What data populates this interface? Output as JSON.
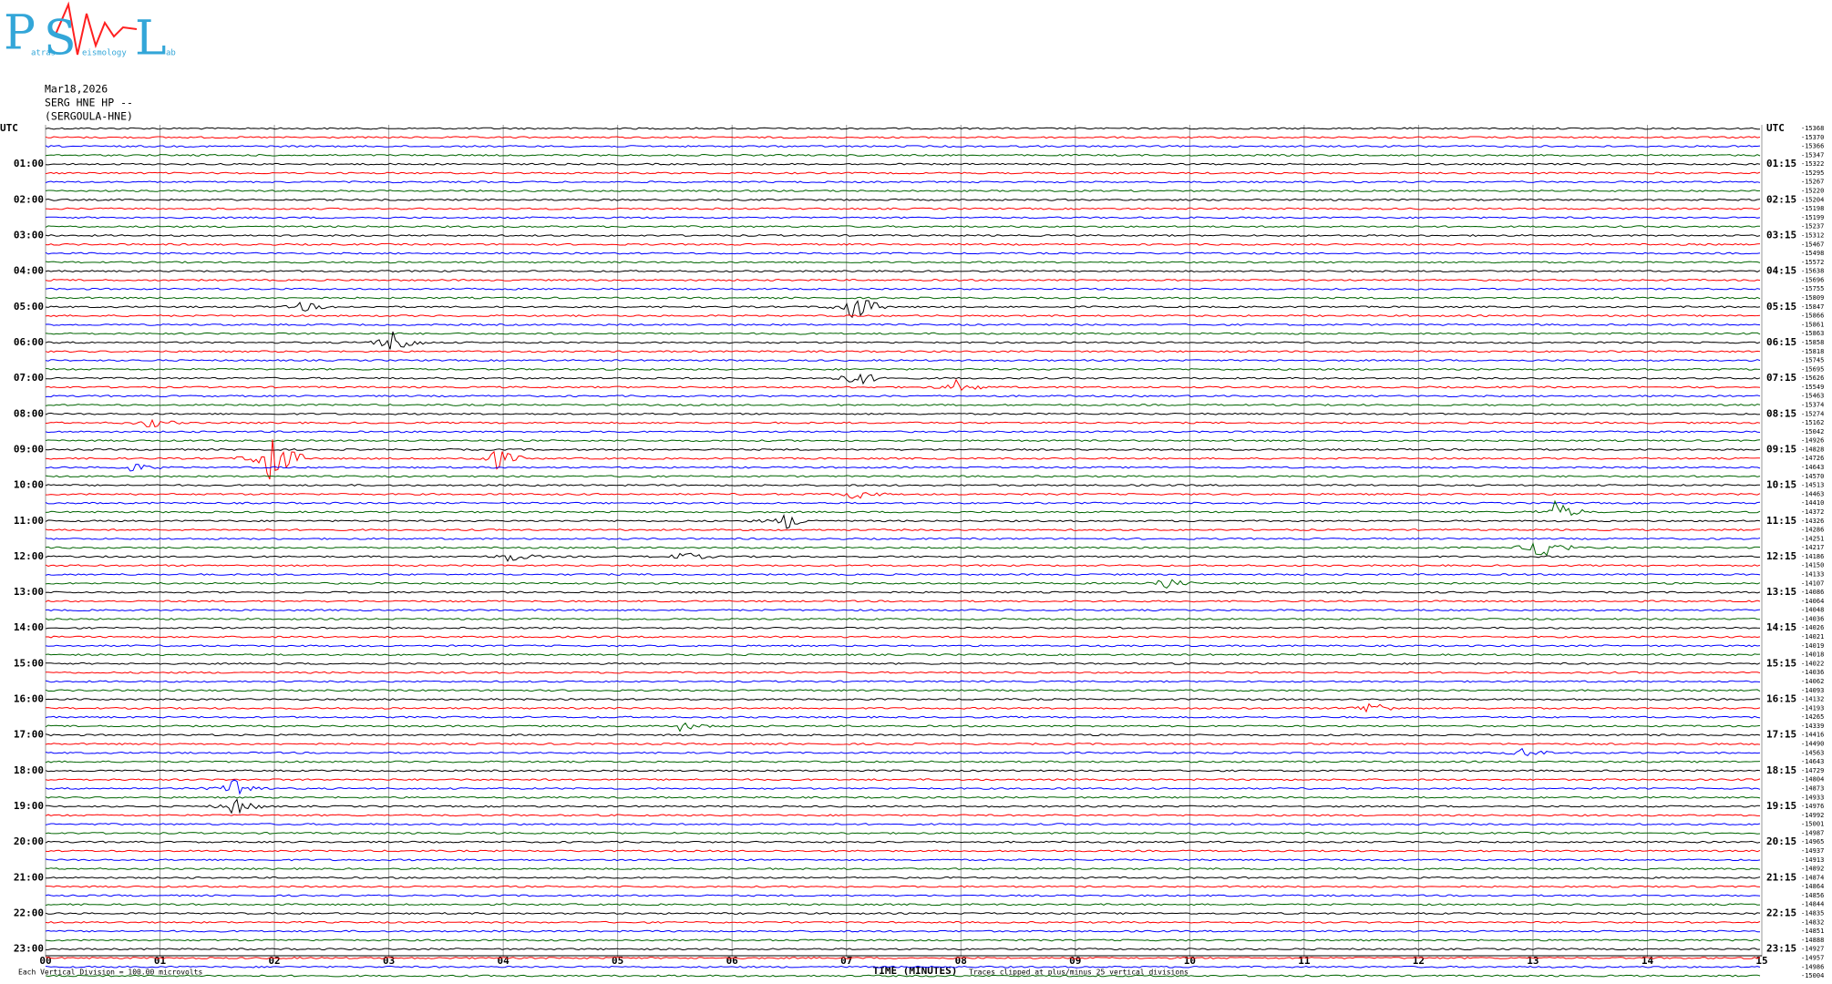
{
  "logo": {
    "letters": [
      "P",
      "S",
      "L"
    ],
    "small": [
      "atras",
      "eismology",
      "ab"
    ]
  },
  "header": {
    "date": "Mar18,2026",
    "channel": "SERG HNE HP --",
    "station": "(SERGOULA-HNE)"
  },
  "left_labels": [
    "UTC",
    "01:00",
    "02:00",
    "03:00",
    "04:00",
    "05:00",
    "06:00",
    "07:00",
    "08:00",
    "09:00",
    "10:00",
    "11:00",
    "12:00",
    "13:00",
    "14:00",
    "15:00",
    "16:00",
    "17:00",
    "18:00",
    "19:00",
    "20:00",
    "21:00",
    "22:00",
    "23:00"
  ],
  "right_labels": [
    "UTC",
    "01:15",
    "02:15",
    "03:15",
    "04:15",
    "05:15",
    "06:15",
    "07:15",
    "08:15",
    "09:15",
    "10:15",
    "11:15",
    "12:15",
    "13:15",
    "14:15",
    "15:15",
    "16:15",
    "17:15",
    "18:15",
    "19:15",
    "20:15",
    "21:15",
    "22:15",
    "23:15"
  ],
  "trace_offsets": [
    -15368,
    -15370,
    -15366,
    -15347,
    -15322,
    -15295,
    -15267,
    -15220,
    -15204,
    -15198,
    -15199,
    -15237,
    -15312,
    -15467,
    -15498,
    -15572,
    -15638,
    -15696,
    -15755,
    -15809,
    -15847,
    -15866,
    -15861,
    -15863,
    -15858,
    -15818,
    -15745,
    -15695,
    -15626,
    -15549,
    -15463,
    -15374,
    -15274,
    -15162,
    -15042,
    -14926,
    -14828,
    -14726,
    -14643,
    -14570,
    -14513,
    -14463,
    -14410,
    -14372,
    -14326,
    -14286,
    -14251,
    -14217,
    -14186,
    -14150,
    -14133,
    -14107,
    -14086,
    -14064,
    -14048,
    -14036,
    -14026,
    -14021,
    -14019,
    -14018,
    -14022,
    -14036,
    -14062,
    -14093,
    -14132,
    -14193,
    -14265,
    -14339,
    -14416,
    -14490,
    -14563,
    -14643,
    -14729,
    -14804,
    -14873,
    -14933,
    -14976,
    -14992,
    -15001,
    -14987,
    -14965,
    -14937,
    -14913,
    -14892,
    -14874,
    -14864,
    -14856,
    -14844,
    -14835,
    -14832,
    -14851,
    -14888,
    -14927,
    -14957,
    -14986,
    -15004
  ],
  "x_axis": {
    "title": "TIME (MINUTES)",
    "ticks": [
      {
        "value": 0,
        "label": "00"
      },
      {
        "value": 1,
        "label": "01"
      },
      {
        "value": 2,
        "label": "02"
      },
      {
        "value": 3,
        "label": "03"
      },
      {
        "value": 4,
        "label": "04"
      },
      {
        "value": 5,
        "label": "05"
      },
      {
        "value": 6,
        "label": "06"
      },
      {
        "value": 7,
        "label": "07"
      },
      {
        "value": 8,
        "label": "08"
      },
      {
        "value": 9,
        "label": "09"
      },
      {
        "value": 10,
        "label": "10"
      },
      {
        "value": 11,
        "label": "11"
      },
      {
        "value": 12,
        "label": "12"
      },
      {
        "value": 13,
        "label": "13"
      },
      {
        "value": 14,
        "label": "14"
      },
      {
        "value": 15,
        "label": "15"
      }
    ],
    "range": [
      0,
      15
    ]
  },
  "footer": {
    "scale": "Each Vertical Division =  100.00 microvolts",
    "clip": "Traces clipped at plus/minus 25 vertical divisions"
  },
  "trace_colors": [
    "#000000",
    "#ff0000",
    "#0000ff",
    "#006400"
  ]
}
